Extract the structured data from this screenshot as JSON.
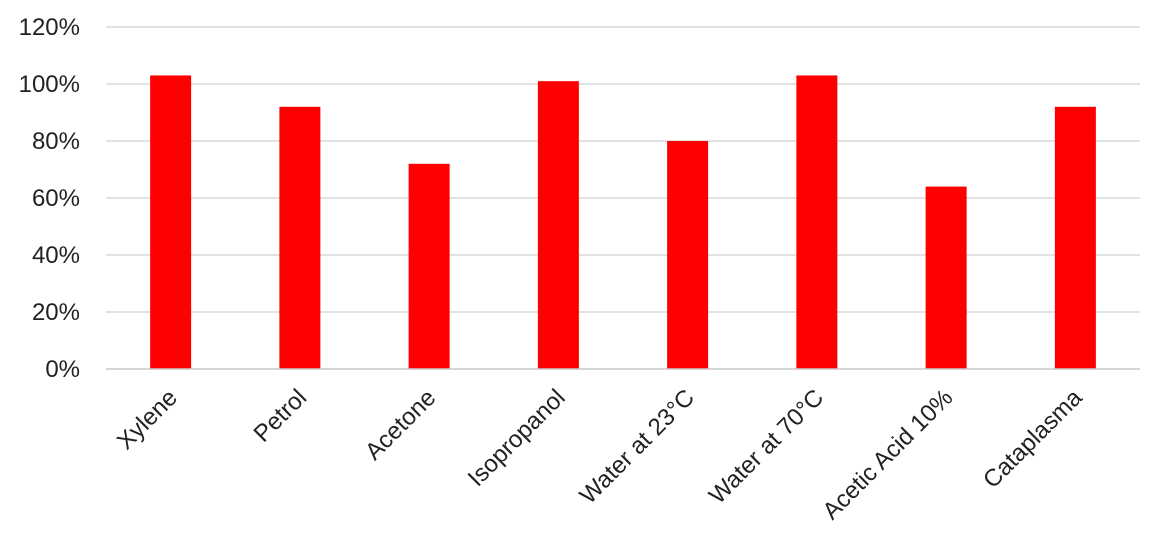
{
  "chart_data": {
    "type": "bar",
    "title": "",
    "xlabel": "",
    "ylabel": "",
    "categories": [
      "Xylene",
      "Petrol",
      "Acetone",
      "Isopropanol",
      "Water at 23°C",
      "Water at 70°C",
      "Acetic Acid 10%",
      "Cataplasma"
    ],
    "values": [
      103,
      92,
      72,
      101,
      80,
      103,
      64,
      92
    ],
    "ylim": [
      0,
      120
    ],
    "yticks": [
      "0%",
      "20%",
      "40%",
      "60%",
      "80%",
      "100%",
      "120%"
    ],
    "ytick_values": [
      0,
      20,
      40,
      60,
      80,
      100,
      120
    ],
    "grid": true,
    "legend": "none",
    "bar_color": "#ff0000"
  }
}
